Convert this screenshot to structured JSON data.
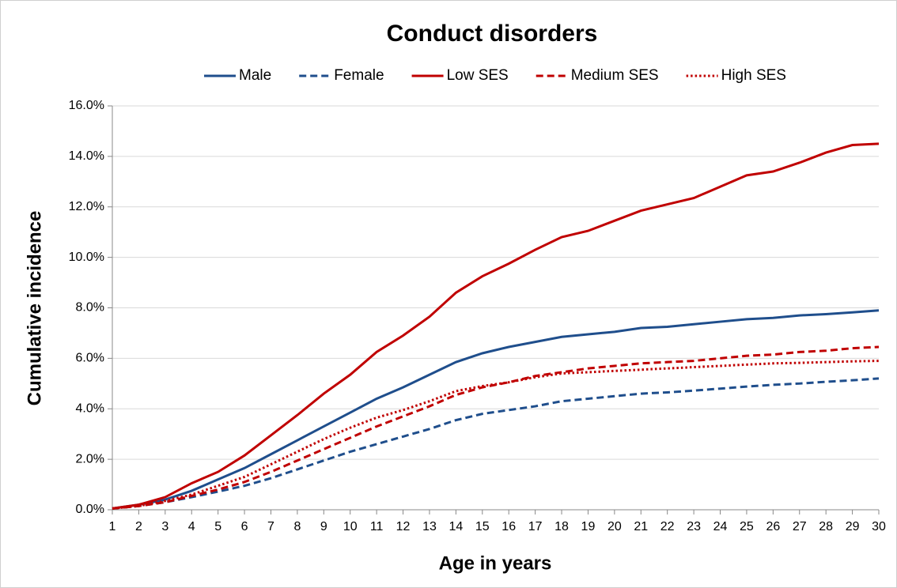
{
  "chart_data": {
    "type": "line",
    "title": "Conduct disorders",
    "x_label": "Age in years",
    "y_label": "Cumulative incidence",
    "x": [
      1,
      2,
      3,
      4,
      5,
      6,
      7,
      8,
      9,
      10,
      11,
      12,
      13,
      14,
      15,
      16,
      17,
      18,
      19,
      20,
      21,
      22,
      23,
      24,
      25,
      26,
      27,
      28,
      29,
      30
    ],
    "xlim": [
      1,
      30
    ],
    "xticks": [
      1,
      2,
      3,
      4,
      5,
      6,
      7,
      8,
      9,
      10,
      11,
      12,
      13,
      14,
      15,
      16,
      17,
      18,
      19,
      20,
      21,
      22,
      23,
      24,
      25,
      26,
      27,
      28,
      29,
      30
    ],
    "ylim": [
      0,
      16
    ],
    "yticks": [
      {
        "value": 0,
        "label": "0.0%"
      },
      {
        "value": 2,
        "label": "2.0%"
      },
      {
        "value": 4,
        "label": "4.0%"
      },
      {
        "value": 6,
        "label": "6.0%"
      },
      {
        "value": 8,
        "label": "8.0%"
      },
      {
        "value": 10,
        "label": "10.0%"
      },
      {
        "value": 12,
        "label": "12.0%"
      },
      {
        "value": 14,
        "label": "14.0%"
      },
      {
        "value": 16,
        "label": "16.0%"
      }
    ],
    "grid": true,
    "legend": "top",
    "series": [
      {
        "name": "Male",
        "color": "#1f4e8c",
        "dash": "solid",
        "values": [
          0.05,
          0.2,
          0.4,
          0.75,
          1.2,
          1.65,
          2.2,
          2.75,
          3.3,
          3.85,
          4.4,
          4.85,
          5.35,
          5.85,
          6.2,
          6.45,
          6.65,
          6.85,
          6.95,
          7.05,
          7.2,
          7.25,
          7.35,
          7.45,
          7.55,
          7.6,
          7.7,
          7.75,
          7.82,
          7.9
        ]
      },
      {
        "name": "Female",
        "color": "#1f4e8c",
        "dash": "dashed",
        "values": [
          0.05,
          0.15,
          0.3,
          0.5,
          0.72,
          0.95,
          1.25,
          1.6,
          1.95,
          2.3,
          2.6,
          2.9,
          3.2,
          3.55,
          3.8,
          3.95,
          4.1,
          4.3,
          4.4,
          4.5,
          4.6,
          4.65,
          4.72,
          4.8,
          4.88,
          4.95,
          5.0,
          5.07,
          5.13,
          5.2
        ]
      },
      {
        "name": "Low SES",
        "color": "#c00000",
        "dash": "solid",
        "values": [
          0.05,
          0.2,
          0.5,
          1.05,
          1.5,
          2.15,
          2.95,
          3.75,
          4.6,
          5.35,
          6.25,
          6.9,
          7.65,
          8.6,
          9.25,
          9.75,
          10.3,
          10.8,
          11.05,
          11.45,
          11.85,
          12.1,
          12.35,
          12.8,
          13.25,
          13.4,
          13.75,
          14.15,
          14.45,
          14.5
        ]
      },
      {
        "name": "Medium SES",
        "color": "#c00000",
        "dash": "dashed",
        "values": [
          0.05,
          0.15,
          0.3,
          0.55,
          0.8,
          1.1,
          1.5,
          1.95,
          2.4,
          2.85,
          3.3,
          3.7,
          4.1,
          4.55,
          4.85,
          5.05,
          5.3,
          5.45,
          5.6,
          5.7,
          5.8,
          5.85,
          5.9,
          6.0,
          6.1,
          6.15,
          6.25,
          6.3,
          6.4,
          6.45
        ]
      },
      {
        "name": "High SES",
        "color": "#c00000",
        "dash": "dotted",
        "values": [
          0.05,
          0.15,
          0.35,
          0.6,
          0.95,
          1.3,
          1.8,
          2.3,
          2.8,
          3.25,
          3.65,
          3.95,
          4.3,
          4.7,
          4.9,
          5.05,
          5.25,
          5.4,
          5.45,
          5.5,
          5.55,
          5.6,
          5.65,
          5.7,
          5.75,
          5.8,
          5.82,
          5.85,
          5.88,
          5.9
        ]
      }
    ]
  }
}
